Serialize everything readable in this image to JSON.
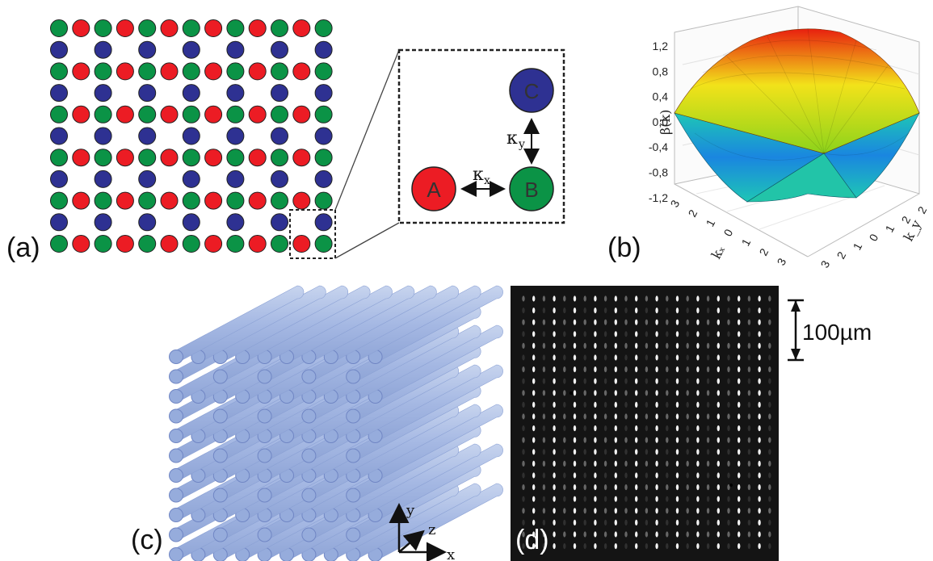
{
  "colors": {
    "red": "#ec1c24",
    "green": "#0b9346",
    "blue": "#2e3192"
  },
  "panel_a": {
    "label": "(a)",
    "lattice_rows": 11,
    "lattice_cols": 13,
    "zoom": {
      "a": "A",
      "b": "B",
      "c": "C",
      "kx": "κ",
      "kx_sub": "x",
      "ky": "κ",
      "ky_sub": "y"
    }
  },
  "panel_b": {
    "label": "(b)",
    "z_ticks": [
      "1,2",
      "0,8",
      "0,4",
      "0,0",
      "-0,4",
      "-0,8",
      "-1,2"
    ],
    "kx_ticks": [
      "3",
      "2",
      "1",
      "0",
      "1",
      "2",
      "3"
    ],
    "ky_ticks": [
      "2",
      "1",
      "0",
      "1",
      "2",
      "3"
    ],
    "ky_top_tick": "2",
    "z_label": "β(k)",
    "kx_label": "kₓ",
    "ky_label": "k_y"
  },
  "panel_c": {
    "label": "(c)",
    "axes": {
      "y": "y",
      "z": "z",
      "x": "x"
    }
  },
  "panel_d": {
    "label": "(d)",
    "scale": "100µm"
  }
}
